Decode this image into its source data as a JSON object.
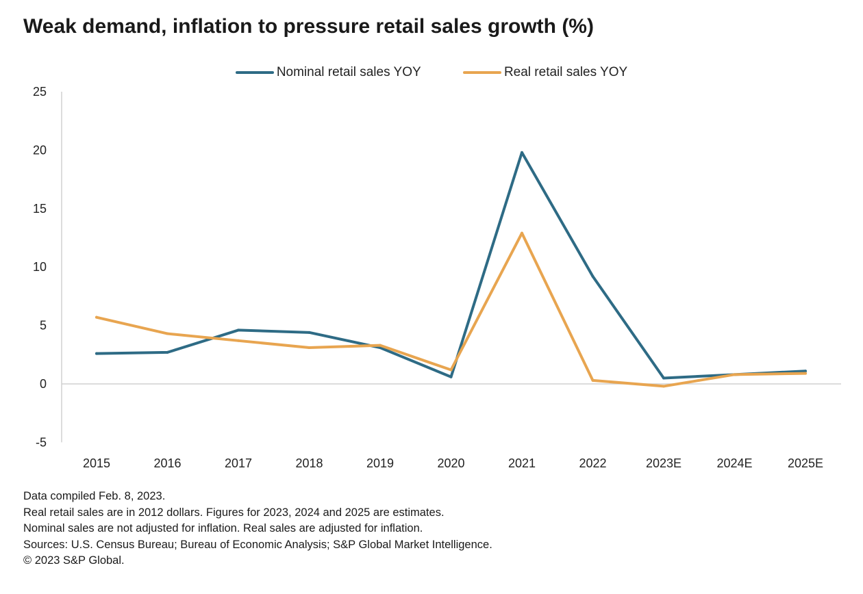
{
  "chart_data": {
    "type": "line",
    "title": "Weak demand, inflation to pressure retail sales growth (%)",
    "xlabel": "",
    "ylabel": "",
    "categories": [
      "2015",
      "2016",
      "2017",
      "2018",
      "2019",
      "2020",
      "2021",
      "2022",
      "2023E",
      "2024E",
      "2025E"
    ],
    "ylim": [
      -5,
      25
    ],
    "yticks": [
      "25",
      "20",
      "15",
      "10",
      "5",
      "0",
      "-5"
    ],
    "grid": false,
    "legend_position": "top",
    "series": [
      {
        "name": "Nominal retail sales YOY",
        "color": "#2e6b85",
        "values": [
          2.6,
          2.7,
          4.6,
          4.4,
          3.1,
          0.6,
          19.8,
          9.2,
          0.5,
          0.8,
          1.1
        ]
      },
      {
        "name": "Real retail sales YOY",
        "color": "#e8a550",
        "values": [
          5.7,
          4.3,
          3.7,
          3.1,
          3.3,
          1.2,
          12.9,
          0.3,
          -0.2,
          0.8,
          0.9
        ]
      }
    ]
  },
  "notes": [
    "Data compiled Feb. 8, 2023.",
    "Real retail sales are in 2012 dollars. Figures for 2023, 2024 and 2025 are estimates.",
    "Nominal sales are not adjusted for inflation. Real sales are adjusted for inflation.",
    "Sources: U.S. Census Bureau; Bureau of Economic Analysis; S&P Global Market Intelligence.",
    "© 2023 S&P Global."
  ]
}
